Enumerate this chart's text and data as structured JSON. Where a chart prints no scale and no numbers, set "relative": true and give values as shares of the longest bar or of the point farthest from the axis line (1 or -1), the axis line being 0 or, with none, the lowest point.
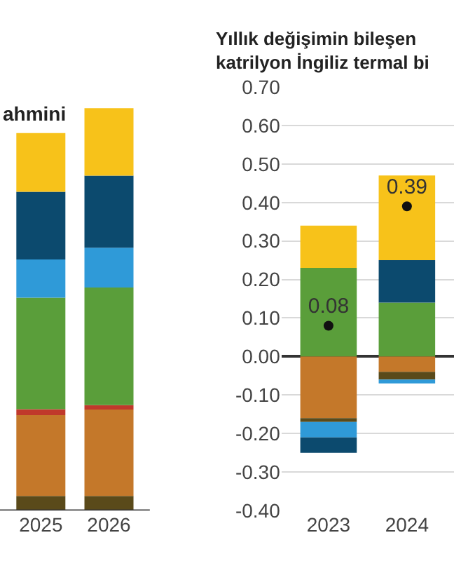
{
  "chart_data": [
    {
      "type": "bar",
      "title": "ahmini",
      "categories": [
        "2025",
        "2026"
      ],
      "stacked": true,
      "relative": true,
      "series": [
        {
          "color": "#5a4a1a",
          "values": [
            0.036,
            0.036
          ]
        },
        {
          "color": "#c4782a",
          "values": [
            0.201,
            0.215
          ]
        },
        {
          "color": "#c0392b",
          "values": [
            0.015,
            0.011
          ]
        },
        {
          "color": "#5a9e3a",
          "values": [
            0.277,
            0.292
          ]
        },
        {
          "color": "#2f9ad8",
          "values": [
            0.095,
            0.099
          ]
        },
        {
          "color": "#0c4a6e",
          "values": [
            0.168,
            0.179
          ]
        },
        {
          "color": "#f7c21a",
          "values": [
            0.146,
            0.168
          ]
        }
      ]
    },
    {
      "type": "bar",
      "title": "Yıllık değişimin bileşen\nkatrilyon İngiliz termal bi",
      "categories": [
        "2023",
        "2024"
      ],
      "stacked": true,
      "grid": "y",
      "ylim": [
        -0.4,
        0.7
      ],
      "yticks": [
        {
          "value": -0.4,
          "label": "-0.40"
        },
        {
          "value": -0.3,
          "label": "-0.30"
        },
        {
          "value": -0.2,
          "label": "-0.20"
        },
        {
          "value": -0.1,
          "label": "-0.10"
        },
        {
          "value": 0,
          "label": "0.00"
        },
        {
          "value": 0.1,
          "label": "0.10"
        },
        {
          "value": 0.2,
          "label": "0.20"
        },
        {
          "value": 0.3,
          "label": "0.30"
        },
        {
          "value": 0.4,
          "label": "0.40"
        },
        {
          "value": 0.5,
          "label": "0.50"
        },
        {
          "value": 0.6,
          "label": "0.60"
        },
        {
          "value": 0.7,
          "label": "0.70"
        }
      ],
      "series": [
        {
          "color": "#c4782a",
          "values": [
            -0.16,
            -0.04
          ]
        },
        {
          "color": "#5a4a1a",
          "values": [
            -0.01,
            -0.02
          ]
        },
        {
          "color": "#5a9e3a",
          "values": [
            0.23,
            0.14
          ]
        },
        {
          "color": "#2f9ad8",
          "values": [
            -0.04,
            -0.01
          ]
        },
        {
          "color": "#0c4a6e",
          "values": [
            -0.04,
            0.11
          ]
        },
        {
          "color": "#f7c21a",
          "values": [
            0.11,
            0.22
          ]
        },
        {
          "type": "scatter",
          "marker": "circle",
          "color": "#111111",
          "values": [
            0.08,
            0.39
          ],
          "value_labels": [
            "0.08",
            "0.39"
          ]
        }
      ]
    }
  ]
}
